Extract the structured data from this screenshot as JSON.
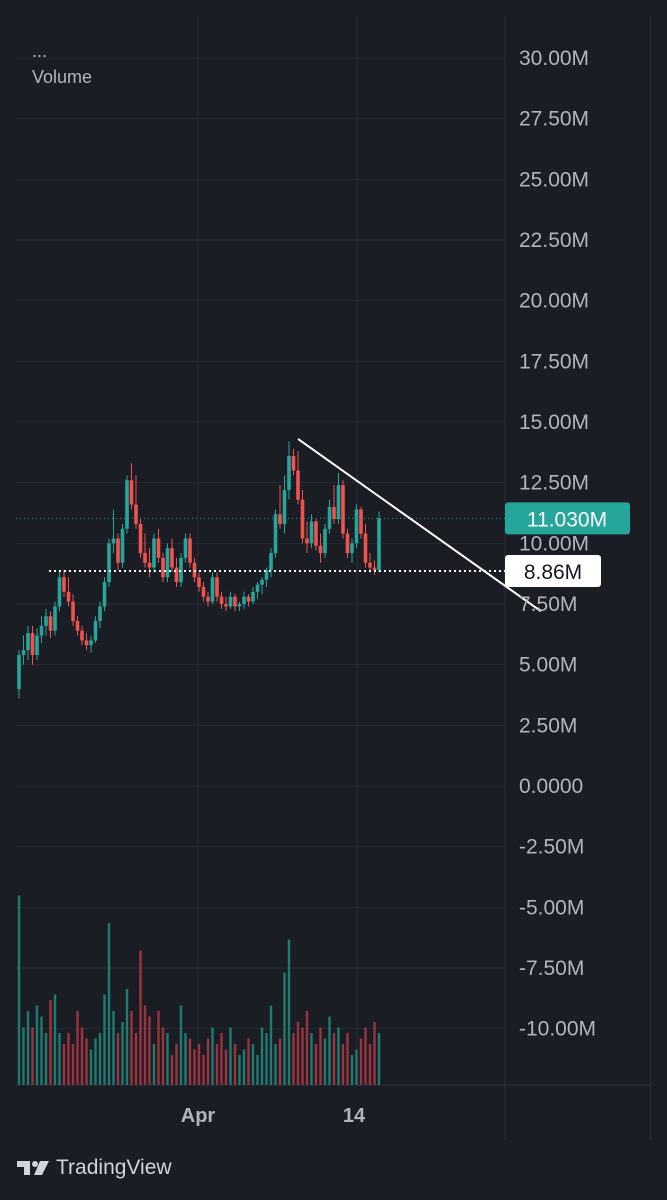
{
  "legend": {
    "dots": "...",
    "title": "Volume"
  },
  "chart_data": {
    "type": "candlestick",
    "y_axis": {
      "ticks": [
        "30.00M",
        "27.50M",
        "25.00M",
        "22.50M",
        "20.00M",
        "17.50M",
        "15.00M",
        "12.50M",
        "10.00M",
        "7.50M",
        "5.00M",
        "2.50M",
        "0.0000",
        "-2.50M",
        "-5.00M",
        "-7.50M",
        "-10.00M"
      ],
      "ylim": [
        -12.3,
        30.8
      ],
      "unit": "M"
    },
    "x_axis": {
      "ticks": [
        "Apr",
        "14"
      ]
    },
    "grid": true,
    "current_value": {
      "label": "11.030M",
      "value": 11.03,
      "color": "#26a69a"
    },
    "support_level": {
      "label": "8.86M",
      "value": 8.86
    },
    "trendline": {
      "from": {
        "bar": 62,
        "value": 14.3
      },
      "to": {
        "bar": 116,
        "value": 7.2
      }
    },
    "ohlc": [
      [
        4.0,
        5.6,
        3.6,
        5.4
      ],
      [
        5.4,
        6.2,
        5.0,
        5.6
      ],
      [
        5.6,
        6.6,
        5.2,
        6.3
      ],
      [
        6.3,
        6.6,
        5.0,
        5.4
      ],
      [
        5.4,
        6.5,
        5.2,
        6.2
      ],
      [
        6.2,
        7.0,
        5.9,
        6.6
      ],
      [
        6.6,
        7.3,
        6.2,
        7.0
      ],
      [
        7.0,
        7.2,
        6.1,
        6.4
      ],
      [
        6.4,
        7.6,
        6.2,
        7.4
      ],
      [
        7.4,
        8.9,
        7.2,
        8.6
      ],
      [
        8.6,
        8.9,
        7.8,
        8.0
      ],
      [
        8.0,
        8.6,
        7.4,
        7.6
      ],
      [
        7.6,
        7.9,
        6.6,
        6.8
      ],
      [
        6.8,
        7.0,
        6.2,
        6.4
      ],
      [
        6.4,
        6.6,
        5.8,
        6.0
      ],
      [
        6.0,
        6.3,
        5.6,
        5.8
      ],
      [
        5.8,
        6.2,
        5.5,
        6.0
      ],
      [
        6.0,
        7.0,
        5.9,
        6.8
      ],
      [
        6.8,
        7.6,
        6.5,
        7.4
      ],
      [
        7.4,
        8.6,
        7.2,
        8.4
      ],
      [
        8.4,
        10.2,
        8.2,
        10.0
      ],
      [
        10.0,
        11.4,
        9.6,
        10.2
      ],
      [
        10.2,
        10.4,
        8.9,
        9.2
      ],
      [
        9.2,
        10.8,
        9.0,
        10.6
      ],
      [
        10.6,
        12.8,
        10.4,
        12.6
      ],
      [
        12.6,
        13.3,
        11.4,
        11.6
      ],
      [
        11.6,
        12.8,
        10.6,
        10.8
      ],
      [
        10.8,
        11.0,
        9.4,
        9.6
      ],
      [
        9.6,
        10.4,
        9.0,
        9.2
      ],
      [
        9.2,
        9.8,
        8.6,
        9.0
      ],
      [
        9.0,
        10.4,
        8.8,
        10.2
      ],
      [
        10.2,
        10.6,
        9.2,
        9.4
      ],
      [
        9.4,
        9.6,
        8.4,
        8.6
      ],
      [
        8.6,
        10.0,
        8.4,
        9.8
      ],
      [
        9.8,
        10.2,
        8.8,
        9.0
      ],
      [
        9.0,
        9.4,
        8.2,
        8.4
      ],
      [
        8.4,
        9.6,
        8.2,
        9.4
      ],
      [
        9.4,
        10.4,
        9.2,
        10.2
      ],
      [
        10.2,
        10.4,
        9.0,
        9.2
      ],
      [
        9.2,
        9.4,
        8.4,
        8.6
      ],
      [
        8.6,
        8.8,
        8.0,
        8.2
      ],
      [
        8.2,
        8.4,
        7.6,
        7.8
      ],
      [
        7.8,
        8.0,
        7.4,
        7.6
      ],
      [
        7.6,
        8.8,
        7.5,
        8.6
      ],
      [
        8.6,
        8.8,
        7.6,
        7.8
      ],
      [
        7.8,
        8.0,
        7.3,
        7.5
      ],
      [
        7.5,
        7.8,
        7.2,
        7.4
      ],
      [
        7.4,
        8.0,
        7.3,
        7.8
      ],
      [
        7.8,
        7.9,
        7.2,
        7.4
      ],
      [
        7.4,
        7.6,
        7.2,
        7.5
      ],
      [
        7.5,
        8.0,
        7.3,
        7.8
      ],
      [
        7.8,
        7.9,
        7.4,
        7.6
      ],
      [
        7.6,
        8.2,
        7.5,
        8.0
      ],
      [
        8.0,
        8.4,
        7.7,
        8.3
      ],
      [
        8.3,
        8.6,
        7.9,
        8.5
      ],
      [
        8.5,
        9.0,
        8.2,
        8.9
      ],
      [
        8.9,
        9.8,
        8.6,
        9.6
      ],
      [
        9.6,
        11.4,
        9.4,
        11.2
      ],
      [
        11.2,
        12.4,
        10.6,
        10.8
      ],
      [
        10.8,
        12.8,
        10.4,
        12.2
      ],
      [
        12.2,
        14.2,
        11.8,
        13.6
      ],
      [
        13.6,
        13.9,
        12.8,
        13.0
      ],
      [
        13.0,
        13.8,
        11.6,
        11.8
      ],
      [
        11.8,
        12.2,
        10.0,
        10.2
      ],
      [
        10.2,
        10.9,
        9.6,
        10.0
      ],
      [
        10.0,
        11.2,
        9.8,
        10.9
      ],
      [
        10.9,
        11.0,
        9.7,
        9.9
      ],
      [
        9.9,
        10.4,
        9.2,
        9.6
      ],
      [
        9.6,
        10.8,
        9.4,
        10.6
      ],
      [
        10.6,
        11.8,
        10.4,
        11.5
      ],
      [
        11.5,
        12.4,
        10.8,
        11.0
      ],
      [
        11.0,
        12.9,
        10.8,
        12.4
      ],
      [
        12.4,
        12.6,
        10.2,
        10.4
      ],
      [
        10.4,
        10.6,
        9.4,
        9.6
      ],
      [
        9.6,
        10.2,
        9.2,
        10.0
      ],
      [
        10.0,
        11.6,
        9.8,
        11.4
      ],
      [
        11.4,
        11.5,
        10.2,
        10.4
      ],
      [
        10.4,
        10.8,
        9.0,
        9.2
      ],
      [
        9.2,
        9.6,
        8.8,
        9.0
      ],
      [
        9.0,
        9.3,
        8.7,
        8.9
      ],
      [
        8.9,
        11.3,
        8.8,
        11.03
      ]
    ],
    "volume": [
      6.6,
      1.8,
      2.4,
      1.8,
      2.6,
      2.2,
      1.6,
      2.8,
      3.0,
      1.6,
      1.2,
      1.6,
      1.2,
      2.4,
      1.8,
      1.4,
      1.0,
      1.4,
      1.6,
      3.0,
      5.6,
      2.4,
      1.6,
      2.0,
      3.2,
      2.4,
      1.6,
      4.6,
      2.6,
      2.2,
      1.2,
      2.4,
      1.8,
      1.6,
      0.8,
      1.2,
      2.6,
      1.6,
      1.4,
      1.0,
      1.2,
      0.8,
      1.4,
      1.8,
      1.2,
      1.6,
      1.0,
      1.8,
      1.2,
      0.8,
      1.0,
      1.4,
      1.2,
      0.8,
      1.8,
      1.6,
      2.6,
      1.2,
      1.4,
      3.8,
      5.0,
      1.6,
      2.0,
      1.8,
      2.4,
      1.6,
      1.2,
      1.8,
      1.4,
      2.2,
      1.6,
      1.8,
      1.2,
      1.6,
      0.8,
      1.0,
      1.4,
      1.8,
      1.2,
      2.0,
      1.6
    ]
  }
}
